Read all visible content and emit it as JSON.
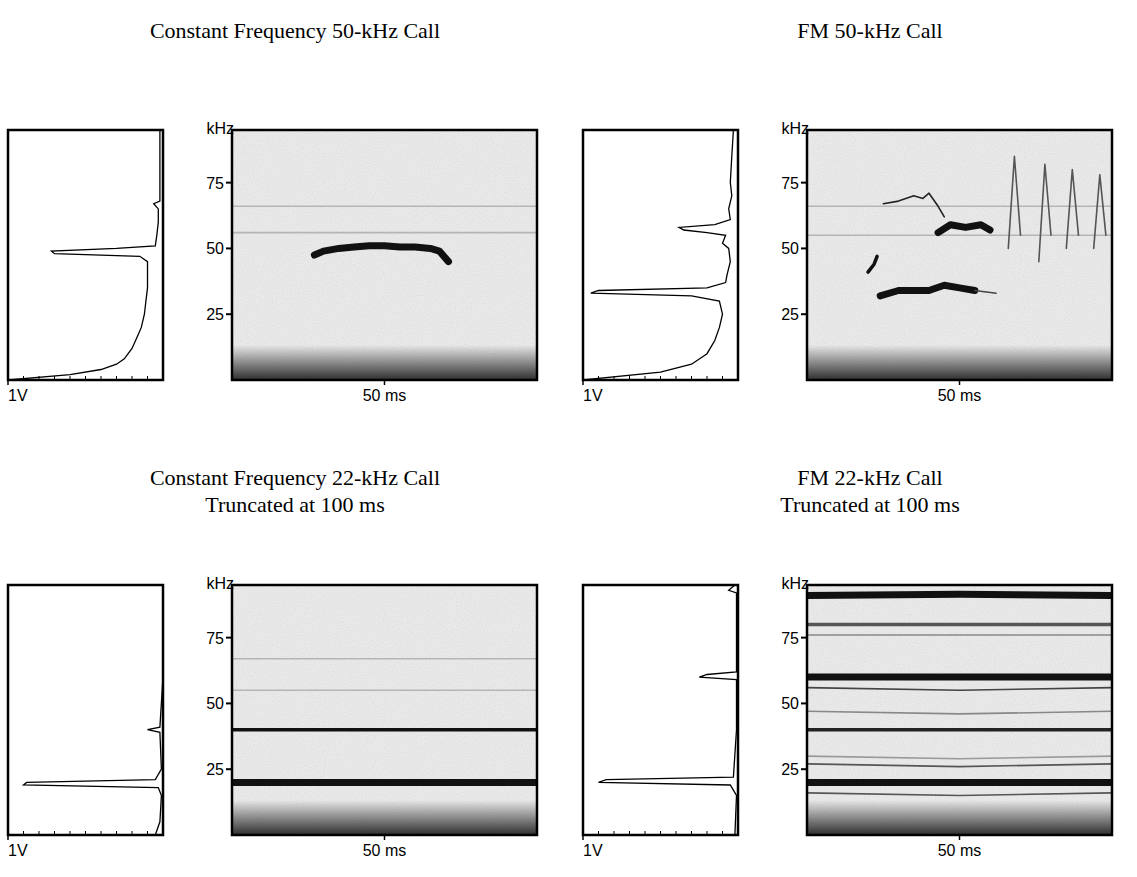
{
  "chart_data": [
    {
      "type": "spectrogram",
      "title": "Constant Frequency 50-kHz Call",
      "ylabel": "kHz",
      "ylim": [
        0,
        95
      ],
      "yticks": [
        25,
        50,
        75
      ],
      "xlim": [
        0,
        100
      ],
      "xticks": [
        {
          "value": 50,
          "label": "50 ms"
        }
      ],
      "spectrum": {
        "xlim": [
          1,
          0
        ],
        "xticks": [
          {
            "value": 1,
            "label": "1V"
          }
        ],
        "color": "#000000",
        "freqs": [
          0,
          2,
          4,
          6,
          8,
          12,
          16,
          20,
          25,
          30,
          35,
          40,
          45,
          47,
          48,
          49,
          50,
          51,
          55,
          60,
          65,
          67,
          68,
          75,
          85,
          95
        ],
        "values": [
          1.0,
          0.6,
          0.4,
          0.3,
          0.25,
          0.2,
          0.17,
          0.14,
          0.12,
          0.11,
          0.1,
          0.1,
          0.1,
          0.15,
          0.7,
          0.72,
          0.3,
          0.05,
          0.04,
          0.03,
          0.03,
          0.06,
          0.02,
          0.02,
          0.02,
          0.02
        ]
      },
      "series": [
        {
          "color": "#b5b5b5",
          "line_style": "thin",
          "x": [
            0,
            100
          ],
          "values": [
            66,
            66
          ]
        },
        {
          "color": "#b5b5b5",
          "line_style": "thin",
          "x": [
            0,
            100
          ],
          "values": [
            56,
            56
          ]
        },
        {
          "color": "#111111",
          "line_style": "thick",
          "x": [
            27,
            30,
            35,
            40,
            45,
            50,
            55,
            60,
            65,
            68,
            71
          ],
          "values": [
            47.5,
            49,
            50,
            50.5,
            51,
            51,
            50.5,
            50.5,
            50,
            49,
            45
          ]
        }
      ]
    },
    {
      "type": "spectrogram",
      "title": "FM 50-kHz Call",
      "ylabel": "kHz",
      "ylim": [
        0,
        95
      ],
      "yticks": [
        25,
        50,
        75
      ],
      "xlim": [
        0,
        100
      ],
      "xticks": [
        {
          "value": 50,
          "label": "50 ms"
        }
      ],
      "spectrum": {
        "xlim": [
          1,
          0
        ],
        "xticks": [
          {
            "value": 1,
            "label": "1V"
          }
        ],
        "color": "#000000",
        "freqs": [
          0,
          3,
          6,
          10,
          15,
          20,
          25,
          30,
          32,
          33,
          34,
          35,
          37,
          40,
          45,
          50,
          52,
          55,
          56,
          57,
          58,
          59,
          61,
          65,
          70,
          75,
          85,
          95
        ],
        "values": [
          1.0,
          0.5,
          0.3,
          0.2,
          0.15,
          0.12,
          0.1,
          0.12,
          0.3,
          0.95,
          0.9,
          0.2,
          0.08,
          0.07,
          0.05,
          0.06,
          0.1,
          0.08,
          0.2,
          0.35,
          0.38,
          0.15,
          0.05,
          0.06,
          0.04,
          0.05,
          0.04,
          0.03
        ]
      },
      "series": [
        {
          "color": "#b5b5b5",
          "line_style": "thin",
          "x": [
            0,
            100
          ],
          "values": [
            66,
            66
          ]
        },
        {
          "color": "#b5b5b5",
          "line_style": "thin",
          "x": [
            0,
            100
          ],
          "values": [
            55,
            55
          ]
        },
        {
          "color": "#222222",
          "line_style": "thin",
          "x": [
            25,
            30,
            35,
            38,
            40,
            43,
            45
          ],
          "values": [
            67,
            68,
            70,
            69,
            71,
            66,
            62
          ]
        },
        {
          "color": "#111111",
          "line_style": "thick",
          "x": [
            43,
            47,
            52,
            57,
            60
          ],
          "values": [
            56,
            59,
            58,
            59,
            57
          ]
        },
        {
          "color": "#111111",
          "line_style": "thick",
          "x": [
            24,
            30,
            40,
            45,
            50,
            55
          ],
          "values": [
            32,
            34,
            34,
            36,
            35,
            34
          ]
        },
        {
          "color": "#444444",
          "line_style": "thin",
          "x": [
            55,
            62
          ],
          "values": [
            34,
            33
          ]
        },
        {
          "color": "#111111",
          "line_style": "medium",
          "x": [
            20,
            22,
            23
          ],
          "values": [
            41,
            44,
            47
          ]
        },
        {
          "color": "#555555",
          "line_style": "thin",
          "x": [
            66,
            68,
            70
          ],
          "values": [
            50,
            85,
            55
          ]
        },
        {
          "color": "#555555",
          "line_style": "thin",
          "x": [
            76,
            78,
            80
          ],
          "values": [
            45,
            82,
            55
          ]
        },
        {
          "color": "#555555",
          "line_style": "thin",
          "x": [
            85,
            87,
            89
          ],
          "values": [
            50,
            80,
            55
          ]
        },
        {
          "color": "#555555",
          "line_style": "thin",
          "x": [
            94,
            96,
            98
          ],
          "values": [
            50,
            78,
            55
          ]
        }
      ]
    },
    {
      "type": "spectrogram",
      "title": "Constant Frequency 22-kHz Call",
      "subtitle": "Truncated at 100 ms",
      "ylabel": "kHz",
      "ylim": [
        0,
        95
      ],
      "yticks": [
        25,
        50,
        75
      ],
      "xlim": [
        0,
        100
      ],
      "xticks": [
        {
          "value": 50,
          "label": "50 ms"
        }
      ],
      "spectrum": {
        "xlim": [
          1,
          0
        ],
        "xticks": [
          {
            "value": 1,
            "label": "1V"
          }
        ],
        "color": "#000000",
        "freqs": [
          0,
          5,
          15,
          18,
          19,
          20,
          21,
          25,
          39,
          40,
          41,
          60,
          95
        ],
        "values": [
          0.05,
          0.02,
          0.01,
          0.03,
          0.9,
          0.88,
          0.05,
          0.01,
          0.02,
          0.1,
          0.02,
          0.0,
          0.0
        ]
      },
      "series": [
        {
          "color": "#b5b5b5",
          "line_style": "thin",
          "x": [
            0,
            100
          ],
          "values": [
            67,
            67
          ]
        },
        {
          "color": "#b5b5b5",
          "line_style": "thin",
          "x": [
            0,
            100
          ],
          "values": [
            55,
            55
          ]
        },
        {
          "color": "#111111",
          "line_style": "medium",
          "x": [
            0,
            100
          ],
          "values": [
            40,
            40
          ]
        },
        {
          "color": "#111111",
          "line_style": "thick",
          "x": [
            0,
            100
          ],
          "values": [
            20,
            20
          ]
        }
      ]
    },
    {
      "type": "spectrogram",
      "title": "FM 22-kHz Call",
      "subtitle": "Truncated at 100 ms",
      "ylabel": "kHz",
      "ylim": [
        0,
        95
      ],
      "yticks": [
        25,
        50,
        75
      ],
      "xlim": [
        0,
        100
      ],
      "xticks": [
        {
          "value": 50,
          "label": "50 ms"
        }
      ],
      "spectrum": {
        "xlim": [
          1,
          0
        ],
        "xticks": [
          {
            "value": 1,
            "label": "1V"
          }
        ],
        "color": "#000000",
        "freqs": [
          0,
          15,
          19,
          20,
          21,
          22,
          40,
          59,
          60,
          61,
          62,
          92,
          93,
          95
        ],
        "values": [
          0.02,
          0.01,
          0.05,
          0.9,
          0.85,
          0.03,
          0.01,
          0.01,
          0.25,
          0.2,
          0.01,
          0.01,
          0.06,
          0.02
        ]
      },
      "series": [
        {
          "color": "#111111",
          "line_style": "thick",
          "x": [
            0,
            50,
            100
          ],
          "values": [
            91,
            91.5,
            91
          ]
        },
        {
          "color": "#555555",
          "line_style": "medium",
          "x": [
            0,
            50,
            100
          ],
          "values": [
            80,
            80,
            80
          ]
        },
        {
          "color": "#888888",
          "line_style": "thin",
          "x": [
            0,
            50,
            100
          ],
          "values": [
            76,
            76,
            76
          ]
        },
        {
          "color": "#111111",
          "line_style": "thick",
          "x": [
            0,
            50,
            100
          ],
          "values": [
            60,
            60,
            60
          ]
        },
        {
          "color": "#444444",
          "line_style": "thin",
          "x": [
            0,
            50,
            100
          ],
          "values": [
            56,
            55,
            56
          ]
        },
        {
          "color": "#888888",
          "line_style": "thin",
          "x": [
            0,
            50,
            100
          ],
          "values": [
            47,
            46,
            47
          ]
        },
        {
          "color": "#222222",
          "line_style": "medium",
          "x": [
            0,
            50,
            100
          ],
          "values": [
            40,
            40,
            40
          ]
        },
        {
          "color": "#999999",
          "line_style": "thin",
          "x": [
            0,
            50,
            100
          ],
          "values": [
            30,
            29,
            30
          ]
        },
        {
          "color": "#555555",
          "line_style": "thin",
          "x": [
            0,
            50,
            100
          ],
          "values": [
            27,
            26,
            27
          ]
        },
        {
          "color": "#111111",
          "line_style": "thick",
          "x": [
            0,
            50,
            100
          ],
          "values": [
            20,
            20,
            20
          ]
        },
        {
          "color": "#555555",
          "line_style": "thin",
          "x": [
            0,
            50,
            100
          ],
          "values": [
            16,
            15,
            16
          ]
        }
      ]
    }
  ]
}
